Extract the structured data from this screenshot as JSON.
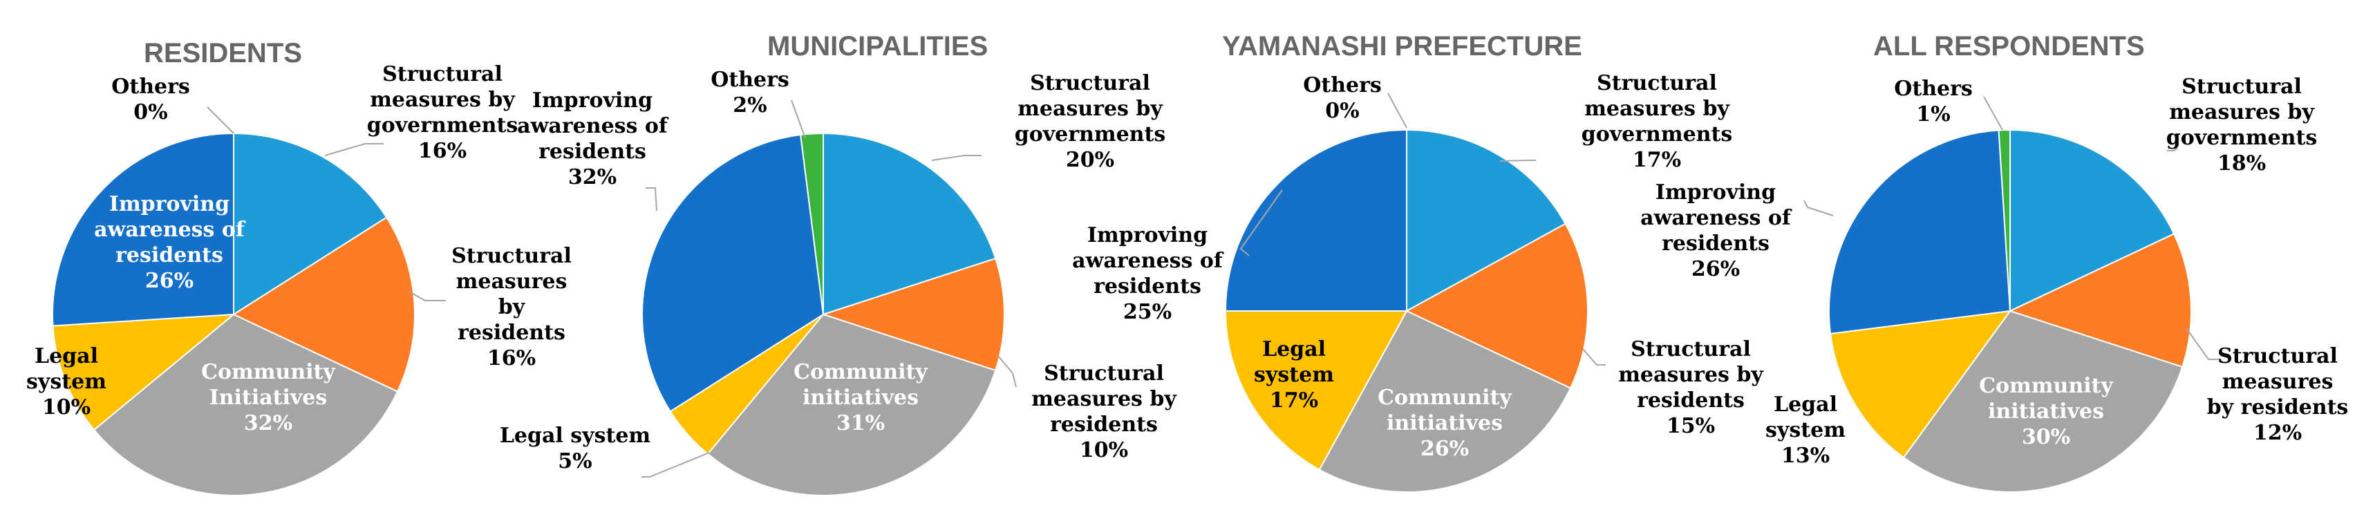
{
  "chart_data": [
    {
      "type": "pie",
      "title": "RESIDENTS",
      "labels": [
        "Structural measures by governments",
        "Structural measures by residents",
        "Community Initiatives",
        "Legal system",
        "Improving awareness of residents",
        "Others"
      ],
      "values": [
        16,
        16,
        32,
        10,
        26,
        0
      ],
      "label_lines": [
        [
          "Structural",
          "measures by",
          "governments",
          "16%"
        ],
        [
          "Structural",
          "measures",
          "by",
          "residents",
          "16%"
        ],
        [
          "Community",
          "Initiatives",
          "32%"
        ],
        [
          "Legal",
          "system",
          "10%"
        ],
        [
          "Improving",
          "awareness of",
          "residents",
          "26%"
        ],
        [
          "Others",
          "0%"
        ]
      ]
    },
    {
      "type": "pie",
      "title": "MUNICIPALITIES",
      "labels": [
        "Structural measures by governments",
        "Structural measures by residents",
        "Community initiatives",
        "Legal system",
        "Improving awareness of residents",
        "Others"
      ],
      "values": [
        20,
        10,
        31,
        5,
        32,
        2
      ],
      "label_lines": [
        [
          "Structural",
          "measures by",
          "governments",
          "20%"
        ],
        [
          "Structural",
          "measures by",
          "residents",
          "10%"
        ],
        [
          "Community",
          "initiatives",
          "31%"
        ],
        [
          "Legal system",
          "5%"
        ],
        [
          "Improving",
          "awareness of",
          "residents",
          "32%"
        ],
        [
          "Others",
          "2%"
        ]
      ]
    },
    {
      "type": "pie",
      "title": "YAMANASHI PREFECTURE",
      "labels": [
        "Structural measures by governments",
        "Structural measures by residents",
        "Community initiatives",
        "Legal system",
        "Improving awareness of residents",
        "Others"
      ],
      "values": [
        17,
        15,
        26,
        17,
        25,
        0
      ],
      "label_lines": [
        [
          "Structural",
          "measures by",
          "governments",
          "17%"
        ],
        [
          "Structural",
          "measures by",
          "residents",
          "15%"
        ],
        [
          "Community",
          "initiatives",
          "26%"
        ],
        [
          "Legal",
          "system",
          "17%"
        ],
        [
          "Improving",
          "awareness of",
          "residents",
          "25%"
        ],
        [
          "Others",
          "0%"
        ]
      ]
    },
    {
      "type": "pie",
      "title": "ALL RESPONDENTS",
      "labels": [
        "Structural measures by governments",
        "Structural measures by residents",
        "Community initiatives",
        "Legal system",
        "Improving awareness of residents",
        "Others"
      ],
      "values": [
        18,
        12,
        30,
        13,
        26,
        1
      ],
      "label_lines": [
        [
          "Structural",
          "measures by",
          "governments",
          "18%"
        ],
        [
          "Structural",
          "measures",
          "by residents",
          "12%"
        ],
        [
          "Community",
          "initiatives",
          "30%"
        ],
        [
          "Legal",
          "system",
          "13%"
        ],
        [
          "Improving",
          "awareness of",
          "residents",
          "26%"
        ],
        [
          "Others",
          "1%"
        ]
      ]
    }
  ],
  "colors": {
    "Structural measures by governments": "#1f9bd7",
    "Structural measures by residents": "#fb7c24",
    "Community initiatives": "#a5a5a5",
    "Legal system": "#ffc000",
    "Improving awareness of residents": "#1570c9",
    "Others": "#3cb33c",
    "dark_label": "#000000",
    "light_label": "#ffffff"
  }
}
